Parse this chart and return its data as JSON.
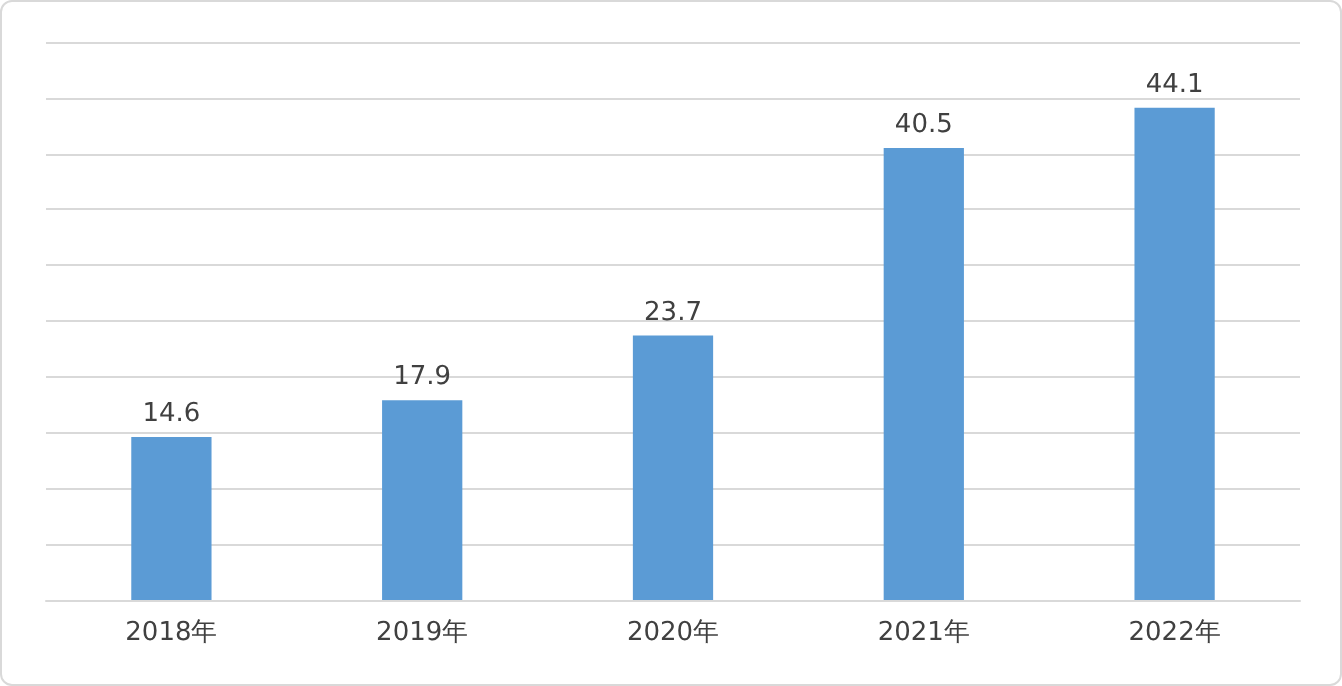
{
  "chart_data": {
    "type": "bar",
    "categories": [
      "2018年",
      "2019年",
      "2020年",
      "2021年",
      "2022年"
    ],
    "values": [
      14.6,
      17.9,
      23.7,
      40.5,
      44.1
    ],
    "color": "#5b9bd5",
    "data_labels": true,
    "grid": "y",
    "ylim": [
      0,
      50
    ],
    "yticks": [
      {
        "value": 0,
        "label": null
      },
      {
        "value": 5,
        "label": null
      },
      {
        "value": 10,
        "label": null
      },
      {
        "value": 15,
        "label": null
      },
      {
        "value": 20,
        "label": null
      },
      {
        "value": 25,
        "label": null
      },
      {
        "value": 30,
        "label": null
      },
      {
        "value": 35,
        "label": null
      },
      {
        "value": 40,
        "label": null
      },
      {
        "value": 45,
        "label": null
      },
      {
        "value": 50,
        "label": null
      }
    ],
    "tick_labels": "x"
  }
}
